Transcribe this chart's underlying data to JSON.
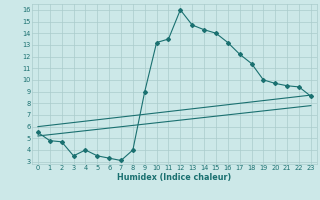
{
  "title": "",
  "xlabel": "Humidex (Indice chaleur)",
  "bg_color": "#cce8e8",
  "line_color": "#1a7070",
  "grid_color": "#aacccc",
  "xlim": [
    -0.5,
    23.5
  ],
  "ylim": [
    2.8,
    16.5
  ],
  "xticks": [
    0,
    1,
    2,
    3,
    4,
    5,
    6,
    7,
    8,
    9,
    10,
    11,
    12,
    13,
    14,
    15,
    16,
    17,
    18,
    19,
    20,
    21,
    22,
    23
  ],
  "yticks": [
    3,
    4,
    5,
    6,
    7,
    8,
    9,
    10,
    11,
    12,
    13,
    14,
    15,
    16
  ],
  "line1_x": [
    0,
    1,
    2,
    3,
    4,
    5,
    6,
    7,
    8,
    9,
    10,
    11,
    12,
    13,
    14,
    15,
    16,
    17,
    18,
    19,
    20,
    21,
    22,
    23
  ],
  "line1_y": [
    5.5,
    4.8,
    4.7,
    3.5,
    4.0,
    3.5,
    3.3,
    3.1,
    4.0,
    9.0,
    13.2,
    13.5,
    16.0,
    14.7,
    14.3,
    14.0,
    13.2,
    12.2,
    11.4,
    10.0,
    9.7,
    9.5,
    9.4,
    8.6
  ],
  "line2_x": [
    0,
    23
  ],
  "line2_y": [
    5.2,
    7.8
  ],
  "line3_x": [
    0,
    23
  ],
  "line3_y": [
    6.0,
    8.7
  ],
  "font_color": "#1a7070",
  "tick_fontsize": 4.8,
  "xlabel_fontsize": 5.8
}
